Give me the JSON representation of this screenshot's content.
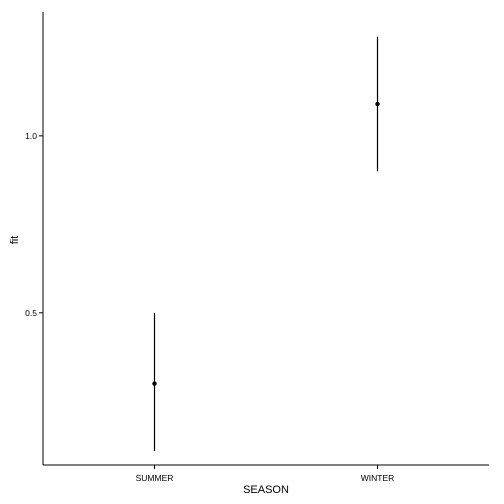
{
  "chart_data": {
    "type": "scatter",
    "subtype": "point-with-errorbars",
    "title": "",
    "xlabel": "SEASON",
    "ylabel": "fit",
    "categories": [
      "SUMMER",
      "WINTER"
    ],
    "series": [
      {
        "values": [
          0.3,
          1.09
        ],
        "lower": [
          0.11,
          0.9
        ],
        "upper": [
          0.5,
          1.28
        ]
      }
    ],
    "ylim": [
      0.07,
      1.35
    ],
    "yticks": [
      0.5,
      1.0
    ],
    "ytick_labels": [
      "0.5",
      "1.0"
    ],
    "grid": false,
    "legend": "none",
    "colors": {
      "mark": "#000000",
      "axis": "#000000"
    }
  }
}
